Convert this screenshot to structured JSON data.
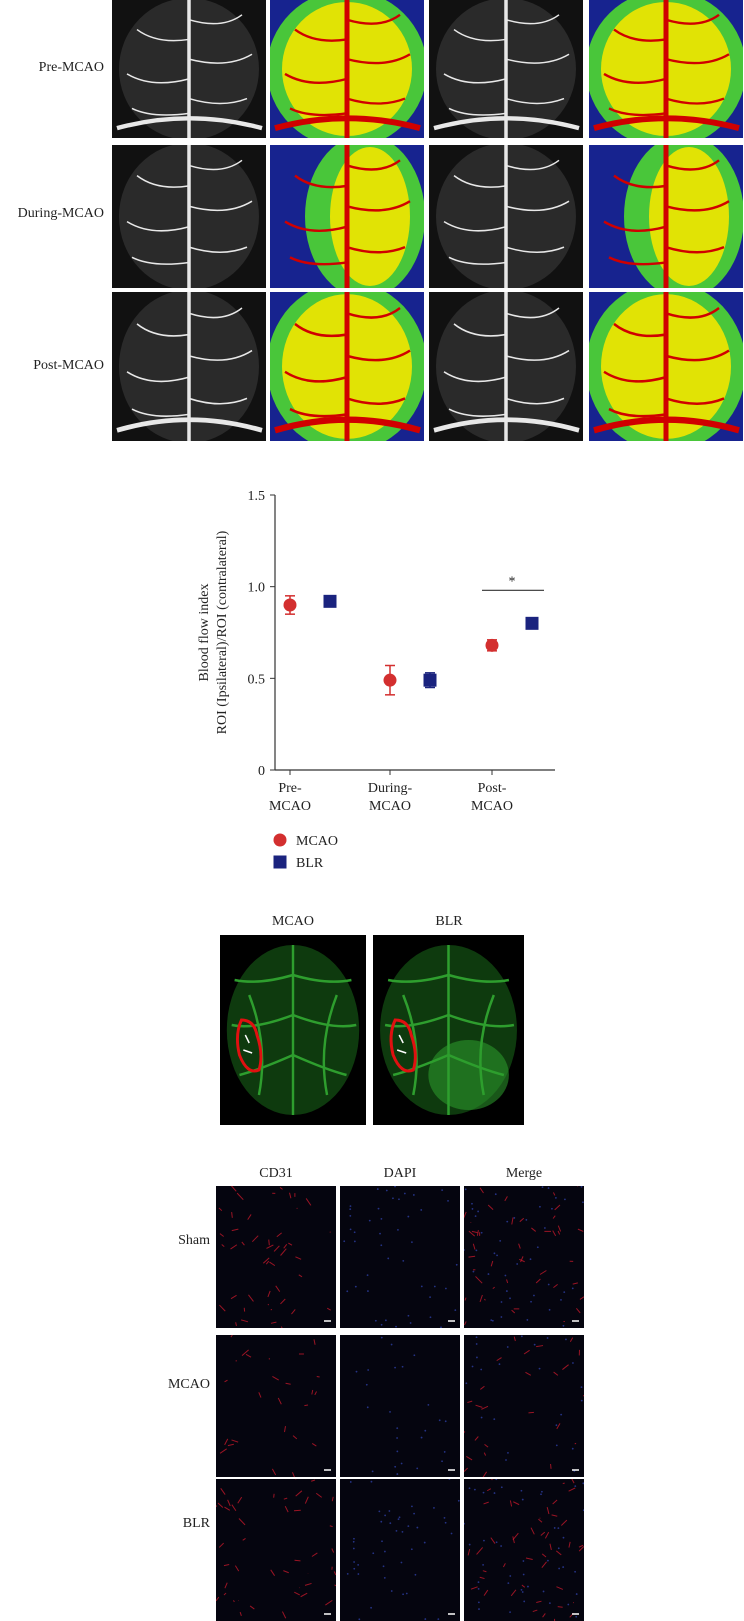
{
  "laser_speckle": {
    "rows": [
      "Pre-MCAO",
      "During-MCAO",
      "Post-MCAO"
    ],
    "colors": {
      "red": "#d00000",
      "yellow": "#f2e500",
      "green": "#49c63a",
      "blue": "#17238f"
    }
  },
  "chart_data": {
    "type": "scatter",
    "categories": [
      "Pre-\nMCAO",
      "During-\nMCAO",
      "Post-\nMCAO"
    ],
    "category_lines": [
      [
        "Pre-",
        "MCAO"
      ],
      [
        "During-",
        "MCAO"
      ],
      [
        "Post-",
        "MCAO"
      ]
    ],
    "ylabel_lines": [
      "Blood flow index",
      "ROI (Ipsilateral)/ROI (contralateral)"
    ],
    "ylim": [
      0,
      1.5
    ],
    "yticks": [
      "0",
      "0.5",
      "1.0",
      "1.5"
    ],
    "significance": "*",
    "series": [
      {
        "name": "MCAO",
        "marker": "circle",
        "color": "#d32f2f",
        "values": [
          0.9,
          0.49,
          0.68
        ],
        "err": [
          0.05,
          0.08,
          0.03
        ]
      },
      {
        "name": "BLR",
        "marker": "square",
        "color": "#1a237e",
        "values": [
          0.92,
          0.49,
          0.8
        ],
        "err": [
          0.01,
          0.04,
          0.01
        ]
      }
    ],
    "grid": false,
    "legend": "bottom-left"
  },
  "vascular": {
    "labels": [
      "MCAO",
      "BLR"
    ],
    "vessel_color": "#2e9e2e",
    "outline_color": "#e01010"
  },
  "immuno": {
    "columns": [
      "CD31",
      "DAPI",
      "Merge"
    ],
    "rows": [
      "Sham",
      "MCAO",
      "BLR"
    ]
  }
}
